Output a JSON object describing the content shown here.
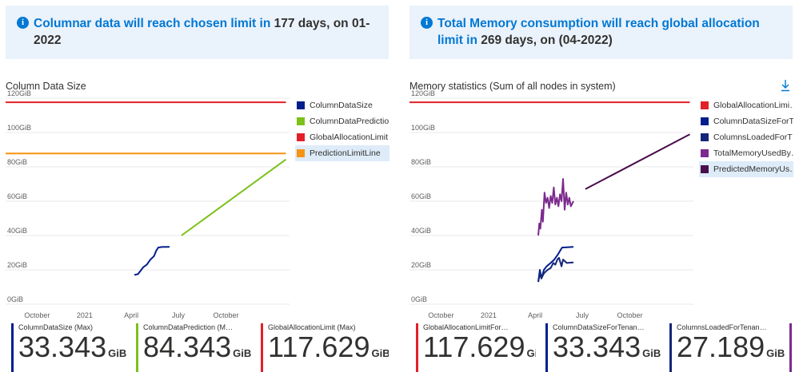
{
  "banners": [
    {
      "highlight": "Columnar data will reach chosen limit in",
      "text": " 177 days, on 01-2022"
    },
    {
      "highlight": "Total Memory consumption will reach global allocation limit in",
      "text": " 269 days, on (04-2022)"
    }
  ],
  "charts": [
    {
      "title": "Column Data Size"
    },
    {
      "title": "Memory statistics (Sum of all nodes in system)",
      "download_icon": "download-icon"
    }
  ],
  "chart_data": [
    {
      "type": "line",
      "title": "Column Data Size",
      "y_ticks": [
        "120GiB",
        "100GiB",
        "80GiB",
        "60GiB",
        "40GiB",
        "20GiB",
        "0GiB"
      ],
      "ylim": [
        0,
        120
      ],
      "x_ticks": [
        {
          "label": "October",
          "x": "2020-10-01"
        },
        {
          "label": "2021",
          "x": "2021-01-01"
        },
        {
          "label": "April",
          "x": "2021-04-01"
        },
        {
          "label": "July",
          "x": "2021-07-01"
        },
        {
          "label": "October",
          "x": "2021-10-01"
        }
      ],
      "xlim": [
        "2020-08-01",
        "2022-02-01"
      ],
      "series": [
        {
          "name": "ColumnDataSize",
          "color": "#001e8c",
          "points": [
            [
              "2021-04-07",
              17
            ],
            [
              "2021-04-14",
              17.5
            ],
            [
              "2021-04-19",
              19.5
            ],
            [
              "2021-04-24",
              21.5
            ],
            [
              "2021-05-01",
              23
            ],
            [
              "2021-05-08",
              26
            ],
            [
              "2021-05-15",
              28
            ],
            [
              "2021-05-19",
              31
            ],
            [
              "2021-05-23",
              33
            ],
            [
              "2021-05-30",
              33.3
            ],
            [
              "2021-06-14",
              33.343
            ]
          ]
        },
        {
          "name": "ColumnDataPrediction",
          "color": "#7bc11a",
          "points": [
            [
              "2021-07-07",
              40
            ],
            [
              "2022-01-25",
              84.343
            ]
          ]
        },
        {
          "name": "GlobalAllocationLimit",
          "color": "#e1202a",
          "points": [
            [
              "2020-08-01",
              117.629
            ],
            [
              "2022-01-25",
              117.629
            ]
          ]
        },
        {
          "name": "PredictionLimitLine",
          "color": "#f7930e",
          "points": [
            [
              "2020-08-01",
              87.8
            ],
            [
              "2022-01-25",
              87.8
            ]
          ]
        }
      ]
    },
    {
      "type": "line",
      "title": "Memory statistics (Sum of all nodes in system)",
      "y_ticks": [
        "120GiB",
        "100GiB",
        "80GiB",
        "60GiB",
        "40GiB",
        "20GiB",
        "0GiB"
      ],
      "ylim": [
        0,
        120
      ],
      "x_ticks": [
        {
          "label": "October",
          "x": "2020-10-01"
        },
        {
          "label": "2021",
          "x": "2021-01-01"
        },
        {
          "label": "April",
          "x": "2021-04-01"
        },
        {
          "label": "July",
          "x": "2021-07-01"
        },
        {
          "label": "October",
          "x": "2021-10-01"
        }
      ],
      "xlim": [
        "2020-08-01",
        "2022-02-01"
      ],
      "series": [
        {
          "name": "GlobalAllocationLimi…",
          "color": "#e1202a",
          "points": [
            [
              "2020-08-01",
              117.629
            ],
            [
              "2022-01-25",
              117.629
            ]
          ]
        },
        {
          "name": "ColumnDataSizeForT…",
          "color": "#001e8c",
          "points": [
            [
              "2021-04-07",
              13
            ],
            [
              "2021-04-10",
              20
            ],
            [
              "2021-04-13",
              15
            ],
            [
              "2021-04-18",
              20
            ],
            [
              "2021-04-23",
              22
            ],
            [
              "2021-05-01",
              24
            ],
            [
              "2021-05-08",
              26
            ],
            [
              "2021-05-15",
              29
            ],
            [
              "2021-05-20",
              31.5
            ],
            [
              "2021-05-23",
              33
            ],
            [
              "2021-06-14",
              33.343
            ]
          ]
        },
        {
          "name": "ColumnsLoadedForT…",
          "color": "#142678",
          "points": [
            [
              "2021-04-07",
              13
            ],
            [
              "2021-04-10",
              18
            ],
            [
              "2021-04-13",
              15
            ],
            [
              "2021-04-18",
              18
            ],
            [
              "2021-04-25",
              20
            ],
            [
              "2021-05-01",
              21
            ],
            [
              "2021-05-06",
              24
            ],
            [
              "2021-05-10",
              23
            ],
            [
              "2021-05-14",
              26
            ],
            [
              "2021-05-17",
              27
            ],
            [
              "2021-05-22",
              22
            ],
            [
              "2021-05-25",
              26
            ],
            [
              "2021-06-01",
              24
            ],
            [
              "2021-06-14",
              24.3
            ]
          ]
        },
        {
          "name": "TotalMemoryUsedBy…",
          "color": "#7c2a8e",
          "points": [
            [
              "2021-04-07",
              40
            ],
            [
              "2021-04-09",
              47
            ],
            [
              "2021-04-11",
              44
            ],
            [
              "2021-04-14",
              55
            ],
            [
              "2021-04-16",
              48
            ],
            [
              "2021-04-19",
              65
            ],
            [
              "2021-04-22",
              59
            ],
            [
              "2021-04-25",
              62
            ],
            [
              "2021-04-28",
              56
            ],
            [
              "2021-05-01",
              63
            ],
            [
              "2021-05-04",
              59
            ],
            [
              "2021-05-07",
              68
            ],
            [
              "2021-05-10",
              58
            ],
            [
              "2021-05-13",
              62
            ],
            [
              "2021-05-16",
              57
            ],
            [
              "2021-05-19",
              64
            ],
            [
              "2021-05-22",
              60
            ],
            [
              "2021-05-25",
              73
            ],
            [
              "2021-05-28",
              55
            ],
            [
              "2021-05-31",
              65
            ],
            [
              "2021-06-03",
              58
            ],
            [
              "2021-06-06",
              62
            ],
            [
              "2021-06-09",
              57
            ],
            [
              "2021-06-14",
              60
            ]
          ]
        },
        {
          "name": "PredictedMemoryUs…",
          "color": "#4a0d4d",
          "points": [
            [
              "2021-07-07",
              67
            ],
            [
              "2022-01-25",
              99
            ]
          ]
        }
      ]
    }
  ],
  "tiles_left": [
    {
      "label": "ColumnDataSize (Max)",
      "value": "33.343",
      "unit": "GiB",
      "color": "#001e8c"
    },
    {
      "label": "ColumnDataPrediction (M…",
      "value": "84.343",
      "unit": "GiB",
      "color": "#7bc11a"
    },
    {
      "label": "GlobalAllocationLimit (Max)",
      "value": "117.629",
      "unit": "GiB",
      "color": "#e1202a"
    }
  ],
  "tiles_right": [
    {
      "label": "GlobalAllocationLimitFor…",
      "value": "117.629",
      "unit": "GiB",
      "color": "#e1202a"
    },
    {
      "label": "ColumnDataSizeForTenan…",
      "value": "33.343",
      "unit": "GiB",
      "color": "#001e8c"
    },
    {
      "label": "ColumnsLoadedForTenan…",
      "value": "27.189",
      "unit": "GiB",
      "color": "#142678"
    },
    {
      "label": "",
      "value": "",
      "unit": "",
      "color": "#7c2a8e"
    }
  ]
}
